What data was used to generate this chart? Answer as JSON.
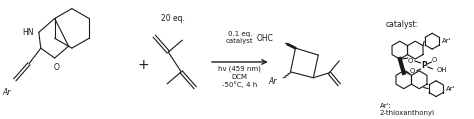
{
  "bg_color": "#ffffff",
  "figsize": [
    4.74,
    1.19
  ],
  "dpi": 100,
  "line_color": "#1a1a1a",
  "lw": 0.8,
  "eq20_text": "20 eq.",
  "catalyst_label": "catalyst:",
  "ar_prime_label": "Ar'",
  "ar_def_label": "Ar':",
  "thioxanthonyl_label": "2-thioxanthonyl",
  "cond_top": "0.1 eq.\ncatalyst",
  "cond_bot": "hν (459 nm)\nDCM\n-50°C, 4 h",
  "font_size_small": 5.0,
  "font_size_label": 5.5,
  "font_size_text": 6.0
}
